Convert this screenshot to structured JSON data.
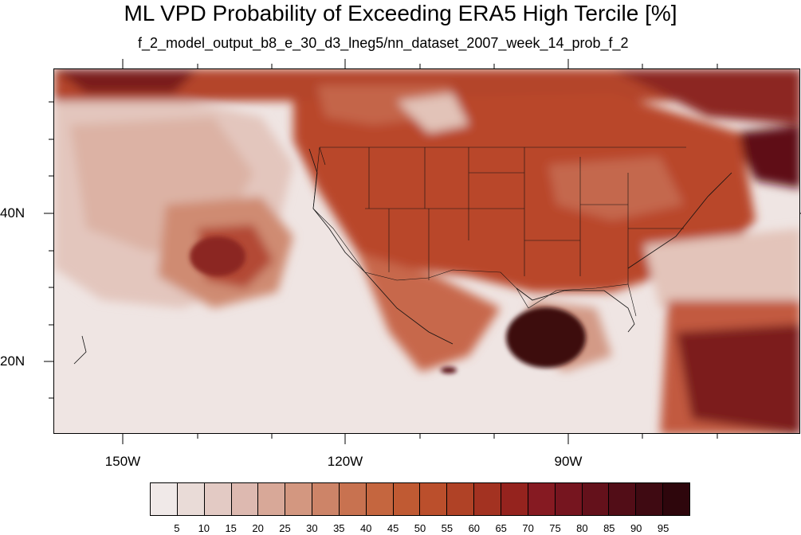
{
  "title": "ML VPD Probability of Exceeding ERA5 High Tercile [%]",
  "subtitle": "f_2_model_output_b8_e_30_d3_lneg5/nn_dataset_2007_week_14_prob_f_2",
  "lon_labels": [
    "150W",
    "120W",
    "90W"
  ],
  "lat_labels": [
    "40N",
    "20N"
  ],
  "colorbar": {
    "levels": [
      "5",
      "10",
      "15",
      "20",
      "25",
      "30",
      "35",
      "40",
      "45",
      "50",
      "55",
      "60",
      "65",
      "70",
      "75",
      "80",
      "85",
      "90",
      "95"
    ],
    "colors": [
      "#f0e9e8",
      "#e9dbd7",
      "#e3cac4",
      "#ddb9b0",
      "#d8a898",
      "#d39780",
      "#cd8468",
      "#c87250",
      "#c5663f",
      "#c05a33",
      "#bb4f2c",
      "#b04226",
      "#a33221",
      "#95231e",
      "#861a22",
      "#76151f",
      "#64111b",
      "#520d17",
      "#3f0a12",
      "#2e060c"
    ]
  },
  "map": {
    "region": "North America and eastern Pacific",
    "lon_range": [
      -160,
      -62
    ],
    "lat_range": [
      11,
      60
    ],
    "ocean_base_color": "#efe5e3",
    "land_base_color": "#b9462a"
  }
}
